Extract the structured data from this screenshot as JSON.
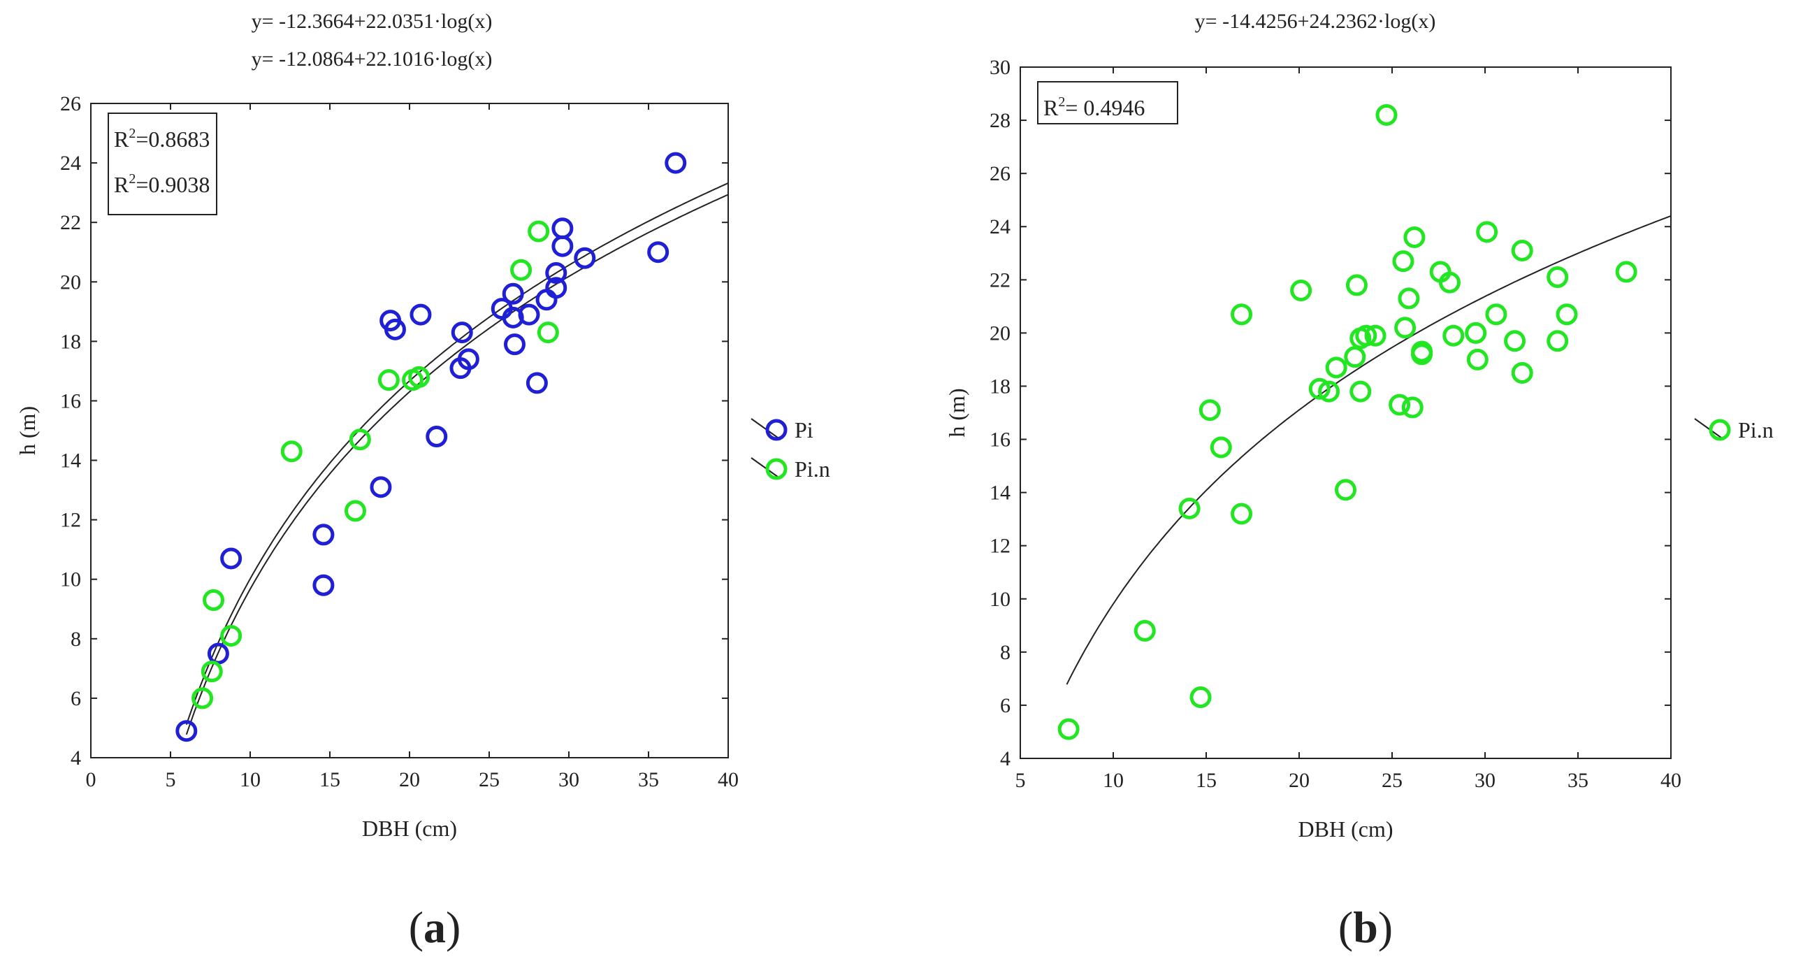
{
  "colors": {
    "pi": "#1f1fd6",
    "pin": "#22e622",
    "axis": "#222222",
    "curve": "#222222"
  },
  "chart_data": [
    {
      "panel": "(a)",
      "panel_label": {
        "open": "(",
        "letter": "a",
        "close": ")"
      },
      "type": "scatter",
      "equations": [
        "y= -12.3664+22.0351·log(x)",
        "y= -12.0864+22.1016·log(x)"
      ],
      "xlabel": "DBH (cm)",
      "ylabel": "h (m)",
      "xlim": [
        0,
        40
      ],
      "ylim": [
        4,
        26
      ],
      "xticks": [
        0,
        5,
        10,
        15,
        20,
        25,
        30,
        35,
        40
      ],
      "yticks": [
        4,
        6,
        8,
        10,
        12,
        14,
        16,
        18,
        20,
        22,
        24,
        26
      ],
      "r2_box": [
        {
          "prefix": "R",
          "sup": "2",
          "value": "=0.8683",
          "color": "#1f1fd6"
        },
        {
          "prefix": "R",
          "sup": "2",
          "value": "=0.9038",
          "color": "#22e622"
        }
      ],
      "curves": [
        {
          "a": -12.3664,
          "b": 22.0351,
          "xmin": 6.0,
          "xmax": 40
        },
        {
          "a": -12.0864,
          "b": 22.1016,
          "xmin": 6.0,
          "xmax": 40
        }
      ],
      "legend": {
        "placement": "right",
        "entries": [
          "Pi",
          "Pi.n"
        ]
      },
      "series": [
        {
          "name": "Pi",
          "color": "#1f1fd6",
          "points": [
            [
              6.0,
              4.9
            ],
            [
              8.0,
              7.5
            ],
            [
              8.8,
              10.7
            ],
            [
              14.6,
              11.5
            ],
            [
              14.6,
              9.8
            ],
            [
              18.2,
              13.1
            ],
            [
              18.8,
              18.7
            ],
            [
              19.1,
              18.4
            ],
            [
              20.7,
              18.9
            ],
            [
              21.7,
              14.8
            ],
            [
              23.2,
              17.1
            ],
            [
              23.3,
              18.3
            ],
            [
              23.7,
              17.4
            ],
            [
              25.8,
              19.1
            ],
            [
              26.5,
              19.6
            ],
            [
              26.5,
              18.8
            ],
            [
              26.6,
              17.9
            ],
            [
              27.5,
              18.9
            ],
            [
              28.0,
              16.6
            ],
            [
              28.6,
              19.4
            ],
            [
              29.2,
              19.8
            ],
            [
              29.2,
              20.3
            ],
            [
              29.6,
              21.2
            ],
            [
              29.6,
              21.8
            ],
            [
              31.0,
              20.8
            ],
            [
              35.6,
              21.0
            ],
            [
              36.7,
              24.0
            ]
          ]
        },
        {
          "name": "Pi.n",
          "color": "#22e622",
          "points": [
            [
              7.0,
              6.0
            ],
            [
              7.6,
              6.9
            ],
            [
              7.7,
              9.3
            ],
            [
              8.8,
              8.1
            ],
            [
              12.6,
              14.3
            ],
            [
              16.6,
              12.3
            ],
            [
              16.9,
              14.7
            ],
            [
              18.7,
              16.7
            ],
            [
              20.2,
              16.7
            ],
            [
              20.6,
              16.8
            ],
            [
              27.0,
              20.4
            ],
            [
              28.1,
              21.7
            ],
            [
              28.7,
              18.3
            ]
          ]
        }
      ]
    },
    {
      "panel": "(b)",
      "panel_label": {
        "open": "(",
        "letter": "b",
        "close": ")"
      },
      "type": "scatter",
      "equations": [
        "y= -14.4256+24.2362·log(x)"
      ],
      "xlabel": "DBH (cm)",
      "ylabel": "h (m)",
      "xlim": [
        5,
        40
      ],
      "ylim": [
        4,
        30
      ],
      "xticks": [
        5,
        10,
        15,
        20,
        25,
        30,
        35,
        40
      ],
      "yticks": [
        4,
        6,
        8,
        10,
        12,
        14,
        16,
        18,
        20,
        22,
        24,
        26,
        28,
        30
      ],
      "r2_box": [
        {
          "prefix": "R",
          "sup": "2",
          "value": "= 0.4946",
          "color": "#222222"
        }
      ],
      "curves": [
        {
          "a": -14.4256,
          "b": 24.2362,
          "xmin": 7.5,
          "xmax": 40
        }
      ],
      "legend": {
        "placement": "right",
        "entries": [
          "Pi.n"
        ]
      },
      "series": [
        {
          "name": "Pi.n",
          "color": "#22e622",
          "points": [
            [
              7.6,
              5.1
            ],
            [
              11.7,
              8.8
            ],
            [
              14.1,
              13.4
            ],
            [
              14.7,
              6.3
            ],
            [
              15.2,
              17.1
            ],
            [
              15.8,
              15.7
            ],
            [
              16.9,
              20.7
            ],
            [
              16.9,
              13.2
            ],
            [
              20.1,
              21.6
            ],
            [
              21.1,
              17.9
            ],
            [
              21.6,
              17.8
            ],
            [
              22.0,
              18.7
            ],
            [
              22.5,
              14.1
            ],
            [
              23.0,
              19.1
            ],
            [
              23.1,
              21.8
            ],
            [
              23.3,
              17.8
            ],
            [
              23.3,
              19.8
            ],
            [
              23.6,
              19.9
            ],
            [
              24.1,
              19.9
            ],
            [
              24.7,
              28.2
            ],
            [
              25.4,
              17.3
            ],
            [
              25.6,
              22.7
            ],
            [
              25.7,
              20.2
            ],
            [
              25.9,
              21.3
            ],
            [
              26.1,
              17.2
            ],
            [
              26.2,
              23.6
            ],
            [
              26.6,
              19.3
            ],
            [
              26.6,
              19.2
            ],
            [
              27.6,
              22.3
            ],
            [
              28.1,
              21.9
            ],
            [
              28.3,
              19.9
            ],
            [
              29.5,
              20.0
            ],
            [
              29.6,
              19.0
            ],
            [
              30.1,
              23.8
            ],
            [
              30.6,
              20.7
            ],
            [
              31.6,
              19.7
            ],
            [
              32.0,
              23.1
            ],
            [
              32.0,
              18.5
            ],
            [
              33.9,
              22.1
            ],
            [
              33.9,
              19.7
            ],
            [
              34.4,
              20.7
            ],
            [
              37.6,
              22.3
            ]
          ]
        }
      ]
    }
  ]
}
